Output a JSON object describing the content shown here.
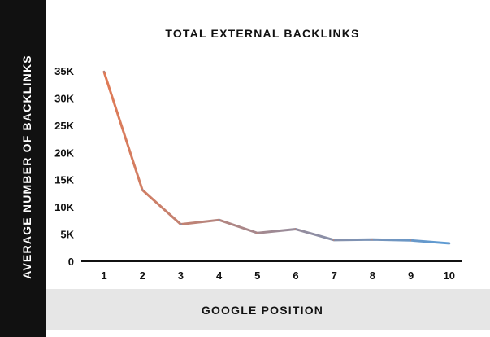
{
  "chart_data": {
    "type": "line",
    "title": "TOTAL EXTERNAL BACKLINKS",
    "xlabel": "GOOGLE POSITION",
    "ylabel": "AVERAGE NUMBER OF BACKLINKS",
    "x": [
      1,
      2,
      3,
      4,
      5,
      6,
      7,
      8,
      9,
      10
    ],
    "series": [
      {
        "values": [
          34800,
          13100,
          6800,
          7600,
          5200,
          5900,
          3900,
          4000,
          3850,
          3300
        ]
      }
    ],
    "y_ticks": [
      "0",
      "5K",
      "10K",
      "15K",
      "20K",
      "25K",
      "30K",
      "35K"
    ],
    "x_ticks": [
      "1",
      "2",
      "3",
      "4",
      "5",
      "6",
      "7",
      "8",
      "9",
      "10"
    ],
    "ylim": [
      0,
      35000
    ],
    "grid": false,
    "line_gradient": {
      "start": "#e07a55",
      "end": "#5b9bd5"
    },
    "ylabel_band_color": "#111111",
    "xlabel_band_color": "#e6e6e6"
  }
}
